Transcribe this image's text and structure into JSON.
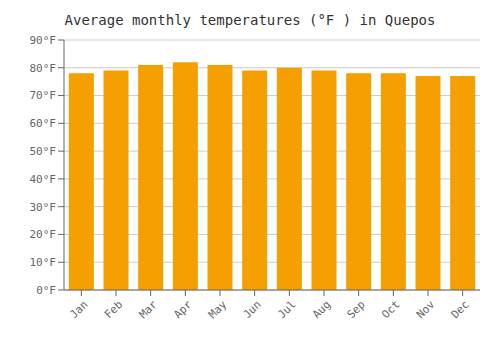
{
  "chart_data": {
    "type": "bar",
    "title": "Average monthly temperatures (°F ) in Quepos",
    "categories": [
      "Jan",
      "Feb",
      "Mar",
      "Apr",
      "May",
      "Jun",
      "Jul",
      "Aug",
      "Sep",
      "Oct",
      "Nov",
      "Dec"
    ],
    "values": [
      78,
      79,
      81,
      82,
      81,
      79,
      80,
      79,
      78,
      78,
      77,
      77
    ],
    "color": "#F5A000",
    "ylim": [
      0,
      90
    ],
    "yticks": [
      {
        "value": 0,
        "label": "0°F"
      },
      {
        "value": 10,
        "label": "10°F"
      },
      {
        "value": 20,
        "label": "20°F"
      },
      {
        "value": 30,
        "label": "30°F"
      },
      {
        "value": 40,
        "label": "40°F"
      },
      {
        "value": 50,
        "label": "50°F"
      },
      {
        "value": 60,
        "label": "60°F"
      },
      {
        "value": 70,
        "label": "70°F"
      },
      {
        "value": 80,
        "label": "80°F"
      },
      {
        "value": 90,
        "label": "90°F"
      }
    ],
    "grid": true
  }
}
